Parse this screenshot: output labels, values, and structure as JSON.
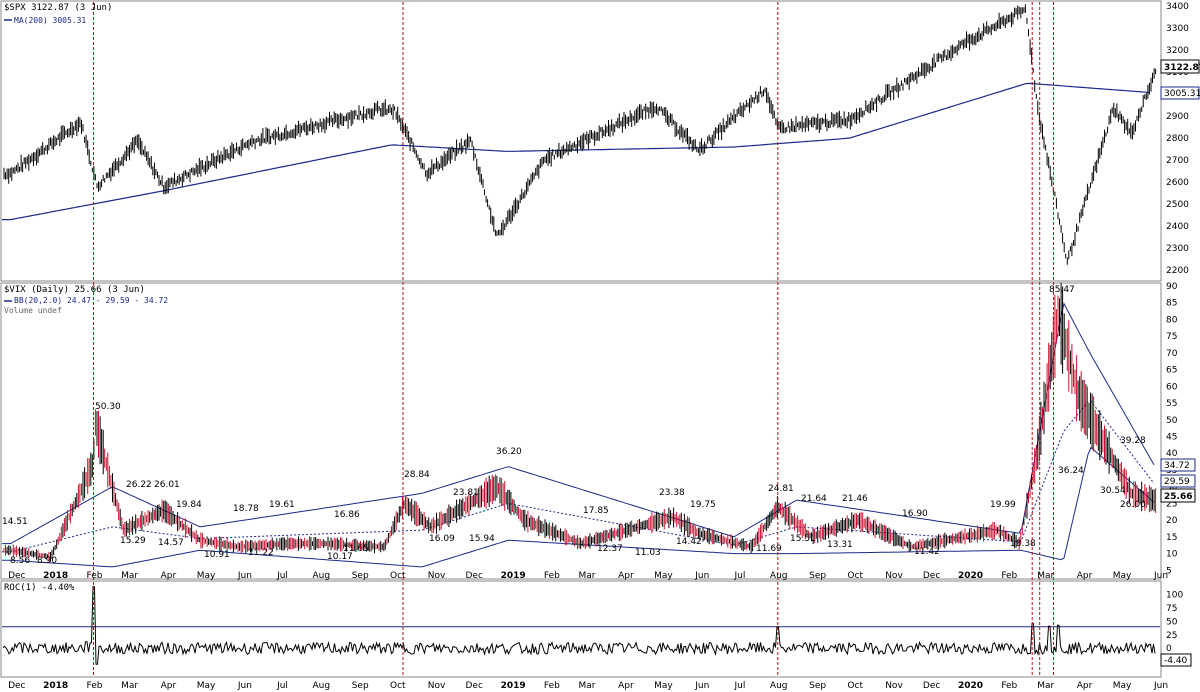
{
  "colors": {
    "price": "#000000",
    "ma": "#1b2a8a",
    "vix_down": "#c8102e",
    "band": "#1b2a8a",
    "event_line": "#b01515",
    "roc_ref": "#1b2a8a"
  },
  "panels": {
    "spx": {
      "title": "$SPX 3122.87 (3 Jun)",
      "legend_ma": "MA(200) 3005.31",
      "last_label": "3122.87",
      "ma_label": "3005.31"
    },
    "vix": {
      "title": "$VIX (Daily) 25.66 (3 Jun)",
      "legend_bb": "BB(20,2.0) 24.47 - 29.59 - 34.72",
      "legend_vol": "Volume undef",
      "last_label": "25.66",
      "mid_label": "29.59",
      "upper_label": "34.72"
    },
    "roc": {
      "title": "ROC(1) -4.40%",
      "last_label": "-4.40"
    }
  },
  "x_axis": {
    "months": [
      "Dec",
      "2018",
      "Feb",
      "Mar",
      "Apr",
      "May",
      "Jun",
      "Jul",
      "Aug",
      "Sep",
      "Oct",
      "Nov",
      "Dec",
      "2019",
      "Feb",
      "Mar",
      "Apr",
      "May",
      "Jun",
      "Jul",
      "Aug",
      "Sep",
      "Oct",
      "Nov",
      "Dec",
      "2020",
      "Feb",
      "Mar",
      "Apr",
      "May",
      "Jun"
    ],
    "bold": [
      "2018",
      "2019",
      "2020"
    ]
  },
  "chart_data": [
    {
      "type": "line",
      "series": [
        {
          "name": "$SPX",
          "x": [
            "2017-12-01",
            "2018-01-26",
            "2018-02-08",
            "2018-03-12",
            "2018-04-02",
            "2018-06-12",
            "2018-09-20",
            "2018-10-03",
            "2018-10-29",
            "2018-12-03",
            "2018-12-24",
            "2019-01-31",
            "2019-04-30",
            "2019-06-03",
            "2019-07-26",
            "2019-08-05",
            "2019-10-02",
            "2019-12-31",
            "2020-02-19",
            "2020-02-28",
            "2020-03-23",
            "2020-04-29",
            "2020-05-13",
            "2020-06-03"
          ],
          "values": [
            2640,
            2873,
            2580,
            2786,
            2580,
            2786,
            2930,
            2925,
            2641,
            2790,
            2351,
            2704,
            2945,
            2744,
            3025,
            2844,
            2887,
            3230,
            3386,
            2954,
            2237,
            2939,
            2820,
            3122
          ]
        },
        {
          "name": "MA(200)",
          "x": [
            "2017-12-01",
            "2018-04-01",
            "2018-10-01",
            "2019-01-01",
            "2019-07-01",
            "2019-10-01",
            "2020-02-20",
            "2020-06-03"
          ],
          "values": [
            2430,
            2560,
            2770,
            2740,
            2760,
            2800,
            3050,
            3005
          ]
        }
      ],
      "ylim": [
        2160,
        3410
      ],
      "yticks": [
        2200,
        2300,
        2400,
        2500,
        2600,
        2700,
        2800,
        2900,
        3000,
        3100,
        3200,
        3300,
        3400
      ]
    },
    {
      "type": "line",
      "series": [
        {
          "name": "$VIX",
          "x": [
            "2017-12-01",
            "2018-01-02",
            "2018-02-05",
            "2018-02-06",
            "2018-03-01",
            "2018-04-02",
            "2018-05-01",
            "2018-06-01",
            "2018-07-10",
            "2018-08-10",
            "2018-09-25",
            "2018-10-11",
            "2018-11-01",
            "2018-12-24",
            "2019-01-15",
            "2019-03-01",
            "2019-05-13",
            "2019-06-03",
            "2019-07-15",
            "2019-08-05",
            "2019-09-01",
            "2019-10-08",
            "2019-11-20",
            "2020-01-27",
            "2020-02-14",
            "2020-02-28",
            "2020-03-16",
            "2020-04-01",
            "2020-04-20",
            "2020-05-13",
            "2020-06-03"
          ],
          "values": [
            11,
            9,
            37,
            50,
            17,
            23,
            14,
            12,
            13,
            13,
            12,
            25,
            18,
            30,
            20,
            13,
            21,
            16,
            12,
            24,
            15,
            20,
            12,
            17,
            13,
            40,
            82,
            57,
            44,
            28,
            25.66
          ]
        },
        {
          "name": "BB upper",
          "x": [
            "2017-12-01",
            "2018-02-20",
            "2018-05-01",
            "2018-10-25",
            "2019-01-02",
            "2019-07-01",
            "2019-08-20",
            "2020-02-15",
            "2020-03-20",
            "2020-04-10",
            "2020-06-03"
          ],
          "values": [
            13,
            30,
            18,
            28,
            36,
            15,
            26,
            16,
            85,
            70,
            34.72
          ]
        },
        {
          "name": "BB lower",
          "x": [
            "2017-12-01",
            "2018-02-20",
            "2018-05-01",
            "2018-10-25",
            "2019-01-02",
            "2019-07-01",
            "2019-08-20",
            "2020-02-15",
            "2020-03-20",
            "2020-04-10",
            "2020-06-03"
          ],
          "values": [
            8,
            6,
            11,
            6,
            14,
            10,
            10,
            11,
            8,
            42,
            24.47
          ]
        }
      ],
      "ylim": [
        3,
        90
      ],
      "yticks": [
        5,
        10,
        15,
        20,
        25,
        30,
        35,
        40,
        45,
        50,
        55,
        60,
        65,
        70,
        75,
        80,
        85,
        90
      ]
    },
    {
      "type": "line",
      "series": [
        {
          "name": "ROC(1)",
          "x": [
            "2018-01-30",
            "2018-02-05",
            "2018-02-08",
            "2019-08-05",
            "2020-02-24",
            "2020-03-09",
            "2020-03-16"
          ],
          "values": [
            12,
            115,
            -30,
            40,
            46,
            41,
            43
          ]
        }
      ],
      "ylim": [
        -50,
        120
      ],
      "yticks": [
        -25,
        0,
        25,
        50,
        75,
        100
      ]
    }
  ],
  "vix_labels": [
    "14.51",
    "8.56",
    "8.90",
    "50.30",
    "26.22",
    "15.29",
    "26.01",
    "19.84",
    "14.57",
    "10.91",
    "18.78",
    "11.22",
    "19.61",
    "16.86",
    "10.17",
    "11.65",
    "28.84",
    "23.81",
    "16.09",
    "15.94",
    "36.20",
    "17.85",
    "12.37",
    "11.03",
    "23.38",
    "19.75",
    "14.42",
    "24.81",
    "11.69",
    "21.64",
    "15.51",
    "21.46",
    "13.31",
    "16.90",
    "11.42",
    "19.99",
    "13.38",
    "85.47",
    "36.24",
    "39.28",
    "30.54",
    "26.00"
  ]
}
